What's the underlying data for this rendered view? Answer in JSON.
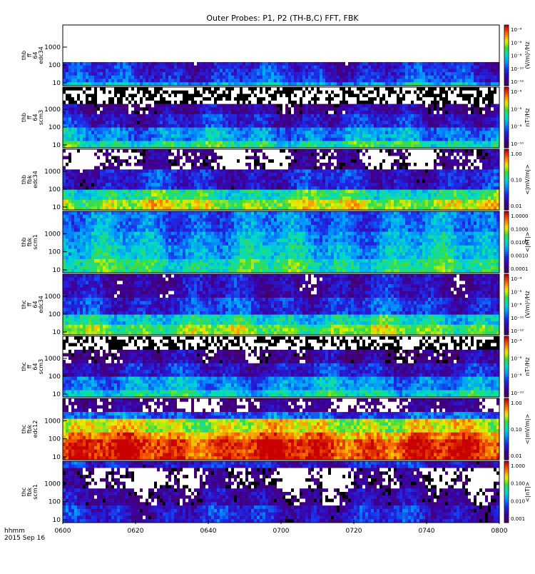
{
  "title": "Outer Probes: P1, P2 (TH-B,C) FFT, FBK",
  "time_axis": {
    "ticks": [
      "0600",
      "0620",
      "0640",
      "0700",
      "0720",
      "0740",
      "0800"
    ],
    "label_line1": "hhmm",
    "label_line2": "2015 Sep 16"
  },
  "chart_data": [
    {
      "type": "heatmap",
      "probe": "thb",
      "product": "ff",
      "sub": "64",
      "instrument": "edc34",
      "y_ticks": [
        "10",
        "100",
        "1000"
      ],
      "y_scale": "log",
      "colorbar": {
        "unit": "(V/m)²/Hz",
        "ticks": [
          "10⁻¹²",
          "10⁻¹⁰",
          "10⁻⁸",
          "10⁻⁶",
          "10⁻⁴"
        ]
      },
      "colormap": "rainbow"
    },
    {
      "type": "heatmap",
      "probe": "thb",
      "product": "ff",
      "sub": "64",
      "instrument": "scm3",
      "y_ticks": [
        "10",
        "100",
        "1000"
      ],
      "y_scale": "log",
      "colorbar": {
        "unit": "nT²/Hz",
        "ticks": [
          "10⁻¹⁰",
          "10⁻⁸",
          "10⁻⁶",
          "10⁻⁴"
        ]
      },
      "colormap": "rainbow"
    },
    {
      "type": "heatmap",
      "probe": "thb",
      "product": "fbk",
      "sub": "",
      "instrument": "edc34",
      "y_ticks": [
        "10",
        "100",
        "1000"
      ],
      "y_scale": "log",
      "colorbar": {
        "unit": "<|mV/m|>",
        "ticks": [
          "0.01",
          "0.10",
          "1.00"
        ]
      },
      "colormap": "rainbow"
    },
    {
      "type": "heatmap",
      "probe": "thb",
      "product": "fbk",
      "sub": "",
      "instrument": "scm1",
      "y_ticks": [
        "10",
        "100",
        "1000"
      ],
      "y_scale": "log",
      "colorbar": {
        "unit": "<|nT|>",
        "ticks": [
          "0.0001",
          "0.0010",
          "0.0100",
          "0.1000",
          "1.0000"
        ]
      },
      "colormap": "rainbow"
    },
    {
      "type": "heatmap",
      "probe": "thc",
      "product": "ff",
      "sub": "64",
      "instrument": "edc34",
      "y_ticks": [
        "10",
        "100",
        "1000"
      ],
      "y_scale": "log",
      "colorbar": {
        "unit": "(V/m)²/Hz",
        "ticks": [
          "10⁻¹²",
          "10⁻¹⁰",
          "10⁻⁸",
          "10⁻⁶",
          "10⁻⁴"
        ]
      },
      "colormap": "rainbow"
    },
    {
      "type": "heatmap",
      "probe": "thc",
      "product": "ff",
      "sub": "64",
      "instrument": "scm3",
      "y_ticks": [
        "10",
        "100",
        "1000"
      ],
      "y_scale": "log",
      "colorbar": {
        "unit": "nT²/Hz",
        "ticks": [
          "10⁻¹⁰",
          "10⁻⁸",
          "10⁻⁶",
          "10⁻⁴"
        ]
      },
      "colormap": "rainbow"
    },
    {
      "type": "heatmap",
      "probe": "thc",
      "product": "fbk",
      "sub": "",
      "instrument": "edc12",
      "y_ticks": [
        "10",
        "100",
        "1000"
      ],
      "y_scale": "log",
      "colorbar": {
        "unit": "<|mV/m|>",
        "ticks": [
          "0.01",
          "0.10",
          "1.00"
        ]
      },
      "colormap": "rainbow"
    },
    {
      "type": "heatmap",
      "probe": "thc",
      "product": "fbk",
      "sub": "",
      "instrument": "scm1",
      "y_ticks": [
        "10",
        "100",
        "1000"
      ],
      "y_scale": "log",
      "colorbar": {
        "unit": "<|nT|>",
        "ticks": [
          "0.001",
          "0.010",
          "0.100",
          "1.000"
        ]
      },
      "colormap": "rainbow"
    }
  ]
}
